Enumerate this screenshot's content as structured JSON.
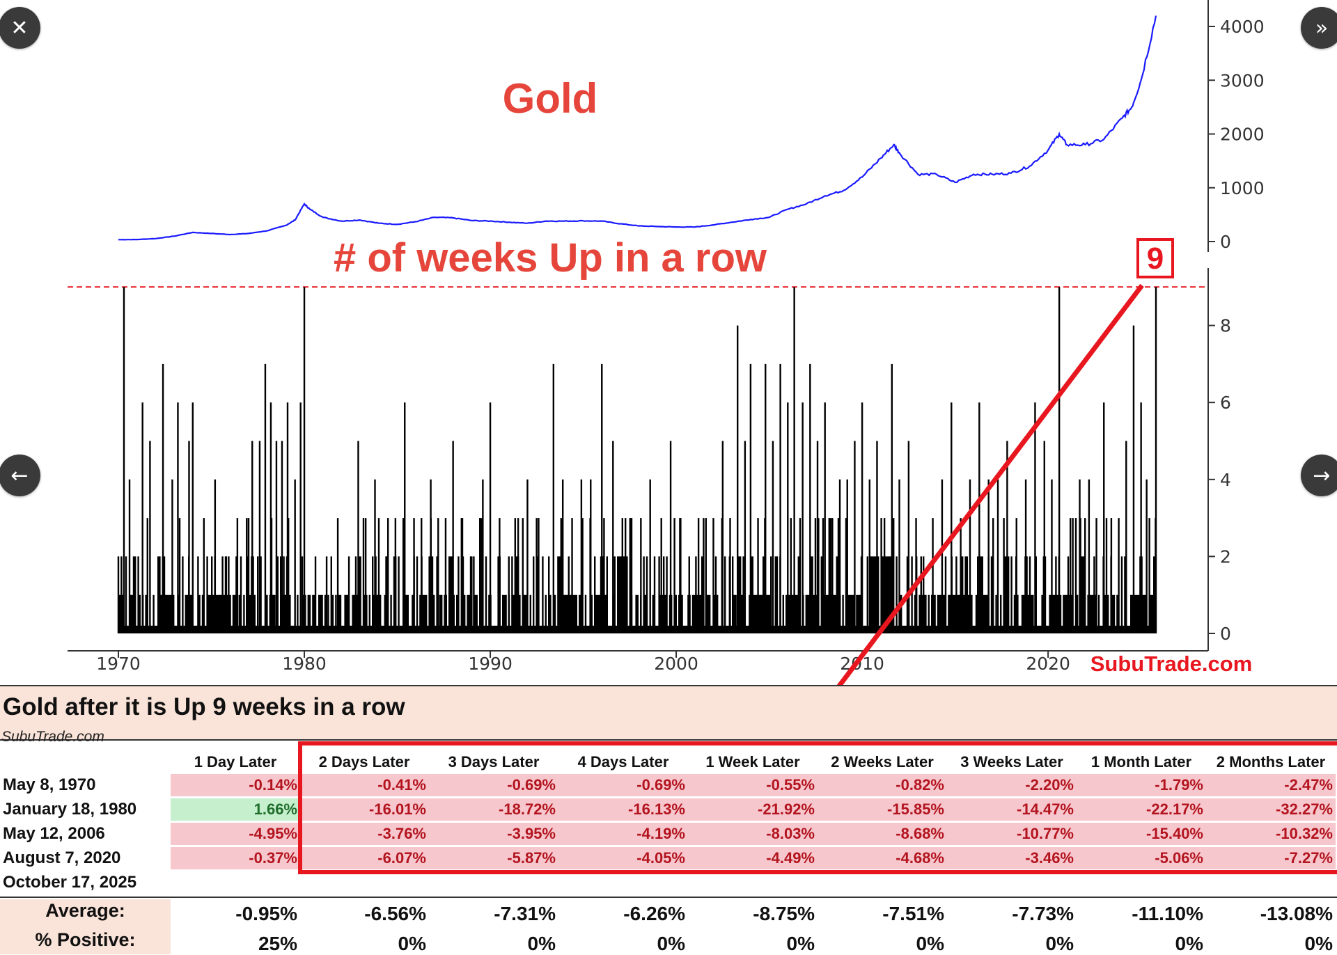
{
  "chart_data": [
    {
      "type": "line",
      "title": "Gold",
      "series": [
        {
          "name": "Gold price",
          "x": [
            1970,
            1971,
            1972,
            1973,
            1974,
            1975,
            1976,
            1977,
            1978,
            1979,
            1979.5,
            1980,
            1980.3,
            1981,
            1982,
            1983,
            1984,
            1985,
            1986,
            1987,
            1988,
            1989,
            1990,
            1991,
            1992,
            1993,
            1994,
            1995,
            1996,
            1997,
            1998,
            1999,
            2000,
            2001,
            2002,
            2003,
            2004,
            2005,
            2006,
            2007,
            2008,
            2009,
            2010,
            2011,
            2011.7,
            2012,
            2013,
            2014,
            2015,
            2016,
            2017,
            2018,
            2019,
            2020,
            2020.6,
            2021,
            2022,
            2023,
            2024,
            2024.5,
            2025,
            2025.8
          ],
          "values": [
            35,
            38,
            55,
            100,
            170,
            150,
            130,
            150,
            200,
            300,
            400,
            700,
            600,
            450,
            380,
            400,
            340,
            320,
            370,
            450,
            440,
            390,
            380,
            360,
            340,
            380,
            380,
            385,
            380,
            330,
            290,
            280,
            270,
            270,
            310,
            360,
            410,
            450,
            600,
            700,
            850,
            950,
            1200,
            1550,
            1800,
            1650,
            1250,
            1250,
            1100,
            1250,
            1250,
            1270,
            1400,
            1700,
            2000,
            1800,
            1800,
            1900,
            2300,
            2500,
            3000,
            4200
          ]
        }
      ],
      "ylim": [
        0,
        4300
      ],
      "yticks": [
        0,
        1000,
        2000,
        3000,
        4000
      ],
      "tick_labels": [
        "0",
        "1000",
        "2000",
        "3000",
        "4000"
      ]
    },
    {
      "type": "bar",
      "title": "# of weeks Up in a row",
      "ylim": [
        0,
        9
      ],
      "yticks": [
        0,
        2,
        4,
        6,
        8
      ],
      "tick_labels": [
        "0",
        "2",
        "4",
        "6",
        "8"
      ],
      "threshold": 9,
      "annotation": "9",
      "spikes": [
        {
          "x": 1970.3,
          "value": 9
        },
        {
          "x": 1970.6,
          "value": 4
        },
        {
          "x": 1971.3,
          "value": 6
        },
        {
          "x": 1971.7,
          "value": 5
        },
        {
          "x": 1972.4,
          "value": 7
        },
        {
          "x": 1972.9,
          "value": 4
        },
        {
          "x": 1973.2,
          "value": 6
        },
        {
          "x": 1973.8,
          "value": 5
        },
        {
          "x": 1974.0,
          "value": 6
        },
        {
          "x": 1974.6,
          "value": 3
        },
        {
          "x": 1975.2,
          "value": 4
        },
        {
          "x": 1975.8,
          "value": 2
        },
        {
          "x": 1976.4,
          "value": 3
        },
        {
          "x": 1976.9,
          "value": 3
        },
        {
          "x": 1977.2,
          "value": 5
        },
        {
          "x": 1977.6,
          "value": 5
        },
        {
          "x": 1977.9,
          "value": 7
        },
        {
          "x": 1978.2,
          "value": 6
        },
        {
          "x": 1978.5,
          "value": 5
        },
        {
          "x": 1978.8,
          "value": 5
        },
        {
          "x": 1979.1,
          "value": 6
        },
        {
          "x": 1979.5,
          "value": 4
        },
        {
          "x": 1979.8,
          "value": 6
        },
        {
          "x": 1980.0,
          "value": 9
        },
        {
          "x": 1980.6,
          "value": 2
        },
        {
          "x": 1981.2,
          "value": 2
        },
        {
          "x": 1981.8,
          "value": 3
        },
        {
          "x": 1982.4,
          "value": 2
        },
        {
          "x": 1982.9,
          "value": 5
        },
        {
          "x": 1983.3,
          "value": 3
        },
        {
          "x": 1983.8,
          "value": 4
        },
        {
          "x": 1984.4,
          "value": 2
        },
        {
          "x": 1984.9,
          "value": 3
        },
        {
          "x": 1985.4,
          "value": 6
        },
        {
          "x": 1985.9,
          "value": 3
        },
        {
          "x": 1986.3,
          "value": 3
        },
        {
          "x": 1986.8,
          "value": 4
        },
        {
          "x": 1987.2,
          "value": 3
        },
        {
          "x": 1987.6,
          "value": 3
        },
        {
          "x": 1988.0,
          "value": 5
        },
        {
          "x": 1988.5,
          "value": 3
        },
        {
          "x": 1989.0,
          "value": 2
        },
        {
          "x": 1989.6,
          "value": 4
        },
        {
          "x": 1990.0,
          "value": 6
        },
        {
          "x": 1990.5,
          "value": 3
        },
        {
          "x": 1991.0,
          "value": 2
        },
        {
          "x": 1991.5,
          "value": 3
        },
        {
          "x": 1992.0,
          "value": 4
        },
        {
          "x": 1992.6,
          "value": 3
        },
        {
          "x": 1993.4,
          "value": 7
        },
        {
          "x": 1993.9,
          "value": 4
        },
        {
          "x": 1994.4,
          "value": 3
        },
        {
          "x": 1994.9,
          "value": 4
        },
        {
          "x": 1995.4,
          "value": 4
        },
        {
          "x": 1996.0,
          "value": 7
        },
        {
          "x": 1996.6,
          "value": 5
        },
        {
          "x": 1997.1,
          "value": 2
        },
        {
          "x": 1997.6,
          "value": 3
        },
        {
          "x": 1998.1,
          "value": 3
        },
        {
          "x": 1998.6,
          "value": 4
        },
        {
          "x": 1999.2,
          "value": 3
        },
        {
          "x": 1999.7,
          "value": 5
        },
        {
          "x": 2000.2,
          "value": 3
        },
        {
          "x": 2000.7,
          "value": 2
        },
        {
          "x": 2001.2,
          "value": 3
        },
        {
          "x": 2001.6,
          "value": 3
        },
        {
          "x": 2002.0,
          "value": 3
        },
        {
          "x": 2002.5,
          "value": 5
        },
        {
          "x": 2002.9,
          "value": 3
        },
        {
          "x": 2003.3,
          "value": 8
        },
        {
          "x": 2003.7,
          "value": 5
        },
        {
          "x": 2004.0,
          "value": 7
        },
        {
          "x": 2004.4,
          "value": 3
        },
        {
          "x": 2004.8,
          "value": 7
        },
        {
          "x": 2005.2,
          "value": 5
        },
        {
          "x": 2005.6,
          "value": 7
        },
        {
          "x": 2006.0,
          "value": 6
        },
        {
          "x": 2006.35,
          "value": 9
        },
        {
          "x": 2006.8,
          "value": 6
        },
        {
          "x": 2007.2,
          "value": 7
        },
        {
          "x": 2007.6,
          "value": 5
        },
        {
          "x": 2008.0,
          "value": 6
        },
        {
          "x": 2008.4,
          "value": 3
        },
        {
          "x": 2008.8,
          "value": 4
        },
        {
          "x": 2009.2,
          "value": 4
        },
        {
          "x": 2009.6,
          "value": 5
        },
        {
          "x": 2010.0,
          "value": 6
        },
        {
          "x": 2010.4,
          "value": 4
        },
        {
          "x": 2010.8,
          "value": 5
        },
        {
          "x": 2011.2,
          "value": 3
        },
        {
          "x": 2011.6,
          "value": 7
        },
        {
          "x": 2012.0,
          "value": 4
        },
        {
          "x": 2012.5,
          "value": 5
        },
        {
          "x": 2012.9,
          "value": 3
        },
        {
          "x": 2013.3,
          "value": 2
        },
        {
          "x": 2013.8,
          "value": 3
        },
        {
          "x": 2014.3,
          "value": 4
        },
        {
          "x": 2014.8,
          "value": 6
        },
        {
          "x": 2015.3,
          "value": 3
        },
        {
          "x": 2015.8,
          "value": 4
        },
        {
          "x": 2016.3,
          "value": 6
        },
        {
          "x": 2016.8,
          "value": 4
        },
        {
          "x": 2017.3,
          "value": 4
        },
        {
          "x": 2017.8,
          "value": 5
        },
        {
          "x": 2018.3,
          "value": 3
        },
        {
          "x": 2018.8,
          "value": 4
        },
        {
          "x": 2019.3,
          "value": 6
        },
        {
          "x": 2019.8,
          "value": 5
        },
        {
          "x": 2020.2,
          "value": 4
        },
        {
          "x": 2020.6,
          "value": 9
        },
        {
          "x": 2021.2,
          "value": 3
        },
        {
          "x": 2021.7,
          "value": 4
        },
        {
          "x": 2022.2,
          "value": 4
        },
        {
          "x": 2022.6,
          "value": 3
        },
        {
          "x": 2023.0,
          "value": 6
        },
        {
          "x": 2023.4,
          "value": 3
        },
        {
          "x": 2023.8,
          "value": 3
        },
        {
          "x": 2024.2,
          "value": 5
        },
        {
          "x": 2024.6,
          "value": 8
        },
        {
          "x": 2025.0,
          "value": 6
        },
        {
          "x": 2025.3,
          "value": 4
        },
        {
          "x": 2025.8,
          "value": 9
        }
      ]
    }
  ],
  "x_axis": {
    "tick_labels": [
      "1970",
      "1980",
      "1990",
      "2000",
      "2010",
      "2020"
    ],
    "xlim": [
      1967,
      2029
    ]
  },
  "watermark_red": "SubuTrade.com",
  "colors": {
    "line": "#1a1aff",
    "accent": "#e8171f",
    "title": "#e5453a",
    "bar": "#000000",
    "neg_bg": "#f7c7ce",
    "neg_text": "#b3141e",
    "pos_bg": "#c6efce",
    "pos_text": "#1f6e2b",
    "band": "#fae3d8"
  },
  "table": {
    "title": "Gold after it is Up 9 weeks in a row",
    "subtitle": "SubuTrade.com",
    "headers": [
      "1 Day Later",
      "2 Days Later",
      "3 Days Later",
      "4 Days Later",
      "1 Week Later",
      "2 Weeks Later",
      "3 Weeks Later",
      "1 Month Later",
      "2 Months Later"
    ],
    "rows": [
      {
        "date": "May 8, 1970",
        "values": [
          "-0.14%",
          "-0.41%",
          "-0.69%",
          "-0.69%",
          "-0.55%",
          "-0.82%",
          "-2.20%",
          "-1.79%",
          "-2.47%"
        ]
      },
      {
        "date": "January 18, 1980",
        "values": [
          "1.66%",
          "-16.01%",
          "-18.72%",
          "-16.13%",
          "-21.92%",
          "-15.85%",
          "-14.47%",
          "-22.17%",
          "-32.27%"
        ]
      },
      {
        "date": "May 12, 2006",
        "values": [
          "-4.95%",
          "-3.76%",
          "-3.95%",
          "-4.19%",
          "-8.03%",
          "-8.68%",
          "-10.77%",
          "-15.40%",
          "-10.32%"
        ]
      },
      {
        "date": "August 7, 2020",
        "values": [
          "-0.37%",
          "-6.07%",
          "-5.87%",
          "-4.05%",
          "-4.49%",
          "-4.68%",
          "-3.46%",
          "-5.06%",
          "-7.27%"
        ]
      },
      {
        "date": "October 17, 2025",
        "values": [
          "",
          "",
          "",
          "",
          "",
          "",
          "",
          "",
          ""
        ]
      }
    ],
    "average_label": "Average:",
    "average": [
      "-0.95%",
      "-6.56%",
      "-7.31%",
      "-6.26%",
      "-8.75%",
      "-7.51%",
      "-7.73%",
      "-11.10%",
      "-13.08%"
    ],
    "positive_label": "% Positive:",
    "positive": [
      "25%",
      "0%",
      "0%",
      "0%",
      "0%",
      "0%",
      "0%",
      "0%",
      "0%"
    ]
  },
  "nav": {
    "close": "✕",
    "expand": "»",
    "prev": "←",
    "next": "→"
  }
}
